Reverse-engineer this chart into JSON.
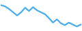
{
  "x": [
    0,
    1,
    2,
    3,
    4,
    5,
    6,
    7,
    8,
    9,
    10,
    11,
    12,
    13,
    14,
    15,
    16,
    17,
    18,
    19,
    20
  ],
  "y": [
    84.0,
    83.0,
    81.0,
    78.5,
    76.0,
    78.5,
    82.0,
    79.5,
    82.5,
    80.0,
    78.5,
    77.0,
    74.0,
    70.5,
    73.0,
    70.0,
    68.5,
    70.5,
    69.0,
    67.5,
    69.0
  ],
  "line_color": "#4baee8",
  "linewidth": 1.6,
  "background_color": "#ffffff",
  "ylim": [
    64,
    88
  ],
  "xlim": [
    -0.3,
    20.3
  ]
}
